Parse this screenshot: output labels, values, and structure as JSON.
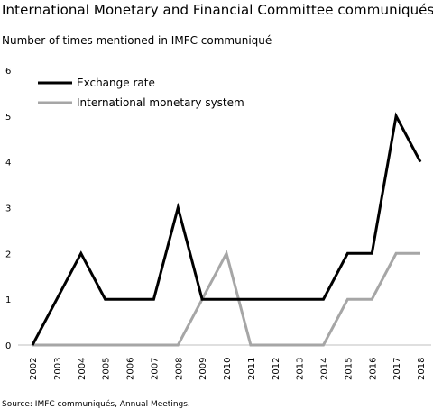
{
  "title": "International Monetary and Financial Committee communiqués",
  "subtitle": "Number of times mentioned in IMFC communiqué",
  "source": "Source:  IMFC communiqués,  Annual  Meetings.",
  "chart_data": {
    "type": "line",
    "x": [
      "2002",
      "2003",
      "2004",
      "2005",
      "2006",
      "2007",
      "2008",
      "2009",
      "2010",
      "2011",
      "2012",
      "2013",
      "2014",
      "2015",
      "2016",
      "2017",
      "2018"
    ],
    "series": [
      {
        "name": "Exchange rate",
        "color": "#000000",
        "values": [
          0,
          1,
          2,
          1,
          1,
          1,
          3,
          1,
          1,
          1,
          1,
          1,
          1,
          2,
          2,
          5,
          4
        ]
      },
      {
        "name": "International monetary system",
        "color": "#a6a6a6",
        "values": [
          0,
          0,
          0,
          0,
          0,
          0,
          0,
          1,
          2,
          0,
          0,
          0,
          0,
          1,
          1,
          2,
          2
        ]
      }
    ],
    "ylim": [
      0,
      6
    ],
    "yticks": [
      "0",
      "1",
      "2",
      "3",
      "4",
      "5",
      "6"
    ],
    "legend_position": "top-left",
    "grid": false
  }
}
